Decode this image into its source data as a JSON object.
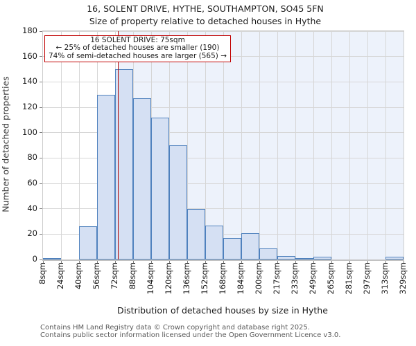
{
  "title": "16, SOLENT DRIVE, HYTHE, SOUTHAMPTON, SO45 5FN",
  "subtitle": "Size of property relative to detached houses in Hythe",
  "annotation": {
    "line1": "16 SOLENT DRIVE: 75sqm",
    "line2": "← 25% of detached houses are smaller (190)",
    "line3": "74% of semi-detached houses are larger (565) →"
  },
  "footer": {
    "line1": "Contains HM Land Registry data © Crown copyright and database right 2025.",
    "line2": "Contains public sector information licensed under the Open Government Licence v3.0."
  },
  "chart_data": {
    "type": "bar",
    "title": "16, SOLENT DRIVE, HYTHE, SOUTHAMPTON, SO45 5FN",
    "subtitle": "Size of property relative to detached houses in Hythe",
    "xlabel": "Distribution of detached houses by size in Hythe",
    "ylabel": "Number of detached properties",
    "x_tick_labels": [
      "8sqm",
      "24sqm",
      "40sqm",
      "56sqm",
      "72sqm",
      "88sqm",
      "104sqm",
      "120sqm",
      "136sqm",
      "152sqm",
      "168sqm",
      "184sqm",
      "200sqm",
      "217sqm",
      "233sqm",
      "249sqm",
      "265sqm",
      "281sqm",
      "297sqm",
      "313sqm",
      "329sqm"
    ],
    "bin_edges_sqm": [
      8,
      24,
      40,
      56,
      72,
      88,
      104,
      120,
      136,
      152,
      168,
      184,
      200,
      217,
      233,
      249,
      265,
      281,
      297,
      313,
      329
    ],
    "values": [
      1,
      0,
      26,
      130,
      150,
      127,
      112,
      90,
      40,
      27,
      17,
      21,
      9,
      3,
      1,
      2,
      0,
      0,
      0,
      2
    ],
    "y_ticks": [
      0,
      20,
      40,
      60,
      80,
      100,
      120,
      140,
      160,
      180
    ],
    "ylim": [
      0,
      180
    ],
    "grid": true,
    "legend": "none",
    "marker_value_sqm": 75,
    "colors": {
      "bar_fill": "#d5e0f3",
      "bar_edge": "#4f81bd",
      "shade_fill": "#edf2fb",
      "marker_line": "#b00000",
      "annotation_border": "#c00000",
      "grid_line": "#d6d6d6"
    }
  }
}
